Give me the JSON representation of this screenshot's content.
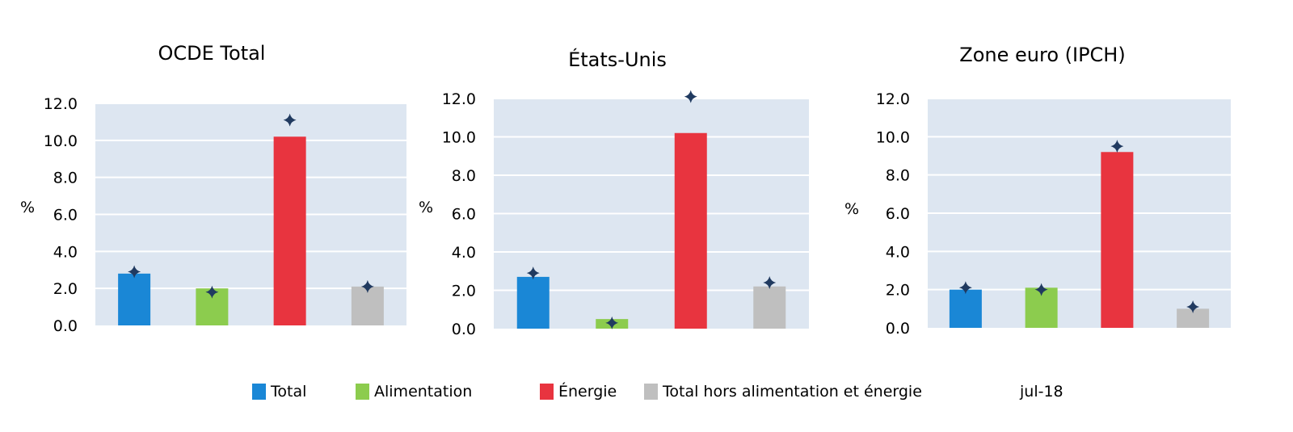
{
  "chart_data": [
    {
      "type": "bar",
      "title": "OCDE Total",
      "ylabel": "%",
      "ylim": [
        0,
        12
      ],
      "yticks": [
        "0.0",
        "2.0",
        "4.0",
        "6.0",
        "8.0",
        "10.0",
        "12.0"
      ],
      "categories": [
        "Total",
        "Alimentation",
        "Énergie",
        "Total hors alimentation et énergie"
      ],
      "series": [
        {
          "kind": "bar",
          "values": [
            2.8,
            2.0,
            10.2,
            2.1
          ]
        },
        {
          "kind": "marker",
          "values": [
            2.9,
            1.8,
            11.1,
            2.1
          ]
        }
      ]
    },
    {
      "type": "bar",
      "title": "États-Unis",
      "ylabel": "%",
      "ylim": [
        0,
        12
      ],
      "yticks": [
        "0.0",
        "2.0",
        "4.0",
        "6.0",
        "8.0",
        "10.0",
        "12.0"
      ],
      "categories": [
        "Total",
        "Alimentation",
        "Énergie",
        "Total hors alimentation et énergie"
      ],
      "series": [
        {
          "kind": "bar",
          "values": [
            2.7,
            0.5,
            10.2,
            2.2
          ]
        },
        {
          "kind": "marker",
          "values": [
            2.9,
            0.3,
            12.1,
            2.4
          ]
        }
      ]
    },
    {
      "type": "bar",
      "title": "Zone euro (IPCH)",
      "ylabel": "%",
      "ylim": [
        0,
        12
      ],
      "yticks": [
        "0.0",
        "2.0",
        "4.0",
        "6.0",
        "8.0",
        "10.0",
        "12.0"
      ],
      "categories": [
        "Total",
        "Alimentation",
        "Énergie",
        "Total hors alimentation et énergie"
      ],
      "series": [
        {
          "kind": "bar",
          "values": [
            2.0,
            2.1,
            9.2,
            1.0
          ]
        },
        {
          "kind": "marker",
          "values": [
            2.1,
            2.0,
            9.5,
            1.1
          ]
        }
      ]
    }
  ],
  "legend": {
    "items": [
      {
        "label": "Total",
        "color": "#1a87d6"
      },
      {
        "label": "Alimentation",
        "color": "#8ccc4e"
      },
      {
        "label": "Énergie",
        "color": "#e8343f"
      },
      {
        "label": "Total hors alimentation et énergie",
        "color": "#bfbfbf"
      }
    ],
    "note": "jul-18"
  },
  "colors": {
    "plot_bg": "#dde6f1",
    "gridline": "#ffffff",
    "marker": "#203a60"
  }
}
